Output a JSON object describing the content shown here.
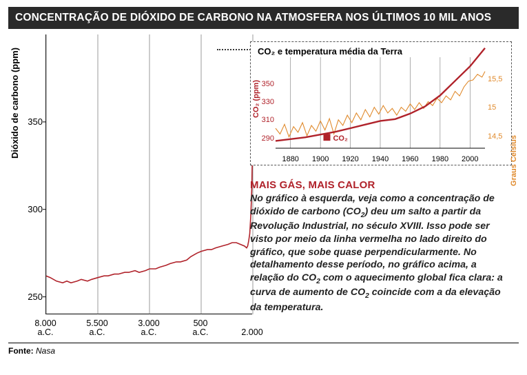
{
  "title": "CONCENTRAÇÃO DE DIÓXIDO DE CARBONO NA ATMOSFERA NOS ÚLTIMOS 10 MIL ANOS",
  "source_label": "Fonte:",
  "source_value": "Nasa",
  "main_chart": {
    "type": "line",
    "ylabel": "Dióxido de carbono (ppm)",
    "axis_color": "#000000",
    "background_color": "#ffffff",
    "line_color": "#b0222a",
    "line_width": 1.6,
    "grid_color": "#555555",
    "grid_width": 0.6,
    "ylim": [
      240,
      400
    ],
    "yticks": [
      250,
      300,
      350
    ],
    "xlim": [
      -8000,
      2000
    ],
    "xticks": [
      -8000,
      -5500,
      -3000,
      -500,
      2000
    ],
    "xtick_labels": [
      "8.000\na.C.",
      "5.500\na.C.",
      "3.000\na.C.",
      "500\na.C.",
      "2.000"
    ],
    "xgrid_at": [
      -8000,
      -5500,
      -3000,
      -500,
      2000
    ],
    "data": {
      "x": [
        -8000,
        -7800,
        -7500,
        -7200,
        -7000,
        -6800,
        -6500,
        -6300,
        -6000,
        -5800,
        -5500,
        -5200,
        -5000,
        -4700,
        -4500,
        -4200,
        -4000,
        -3700,
        -3500,
        -3200,
        -3000,
        -2700,
        -2500,
        -2200,
        -2000,
        -1700,
        -1500,
        -1200,
        -1000,
        -700,
        -500,
        -200,
        0,
        200,
        500,
        800,
        1000,
        1200,
        1400,
        1600,
        1700,
        1750,
        1800,
        1850,
        1900,
        1930,
        1950,
        1970,
        1985,
        1995,
        2005,
        2010
      ],
      "y": [
        262,
        261,
        259,
        258,
        259,
        258,
        259,
        260,
        259,
        260,
        261,
        262,
        262,
        263,
        263,
        264,
        264,
        265,
        264,
        265,
        266,
        266,
        267,
        268,
        269,
        270,
        270,
        271,
        273,
        275,
        276,
        277,
        277,
        278,
        279,
        280,
        281,
        281,
        280,
        279,
        278,
        279,
        282,
        286,
        296,
        305,
        312,
        326,
        345,
        360,
        380,
        392
      ]
    }
  },
  "inset_chart": {
    "type": "dual-axis-line",
    "title": "CO₂ e temperatura média da Terra",
    "border_style": "dashed",
    "border_color": "#555555",
    "background_color": "#ffffff",
    "xlim": [
      1870,
      2010
    ],
    "xticks": [
      1880,
      1900,
      1920,
      1940,
      1960,
      1980,
      2000
    ],
    "grid_color": "#777777",
    "grid_width": 0.6,
    "left_axis": {
      "label": "CO₂ (ppm)",
      "color": "#b0222a",
      "ylim": [
        280,
        380
      ],
      "yticks": [
        290,
        310,
        330,
        350
      ],
      "line_width": 2.4,
      "data": {
        "x": [
          1870,
          1880,
          1890,
          1900,
          1910,
          1920,
          1930,
          1940,
          1950,
          1960,
          1970,
          1980,
          1990,
          2000,
          2010
        ],
        "y": [
          288,
          290,
          292,
          295,
          298,
          302,
          306,
          310,
          312,
          318,
          326,
          338,
          354,
          370,
          390
        ]
      },
      "legend": "CO₂"
    },
    "right_axis": {
      "label": "Graus Celsius",
      "color": "#e08a2c",
      "ylim": [
        14.3,
        15.9
      ],
      "yticks": [
        14.5,
        15,
        15.5
      ],
      "line_width": 1.1,
      "data": {
        "x": [
          1870,
          1873,
          1876,
          1879,
          1882,
          1885,
          1888,
          1891,
          1894,
          1897,
          1900,
          1903,
          1906,
          1909,
          1912,
          1915,
          1918,
          1921,
          1924,
          1927,
          1930,
          1933,
          1936,
          1939,
          1942,
          1945,
          1948,
          1951,
          1954,
          1957,
          1960,
          1963,
          1966,
          1969,
          1972,
          1975,
          1978,
          1981,
          1984,
          1987,
          1990,
          1993,
          1996,
          1999,
          2002,
          2005,
          2008,
          2010
        ],
        "y": [
          14.65,
          14.55,
          14.72,
          14.5,
          14.68,
          14.58,
          14.75,
          14.52,
          14.7,
          14.6,
          14.78,
          14.62,
          14.82,
          14.55,
          14.8,
          14.7,
          14.88,
          14.75,
          14.92,
          14.8,
          14.98,
          14.85,
          15.02,
          14.9,
          15.05,
          14.92,
          15.0,
          14.88,
          15.02,
          14.95,
          15.08,
          14.98,
          15.1,
          15.0,
          15.12,
          15.05,
          15.18,
          15.1,
          15.22,
          15.15,
          15.3,
          15.22,
          15.38,
          15.48,
          15.5,
          15.6,
          15.55,
          15.65
        ]
      }
    }
  },
  "caption": {
    "heading": "MAIS GÁS, MAIS CALOR",
    "heading_color": "#b0222a",
    "body_html": "No gráfico à esquerda, veja como a concentração de dióxido de carbono (CO<sub>2</sub>) deu um salto a partir da Revolução Industrial, no século XVIII. Isso pode ser visto por meio da linha vermelha no lado direito do gráfico, que sobe quase perpendicularmente. No detalhamento desse período, no gráfico acima, a relação do CO<sub>2</sub> com o aquecimento global fica clara: a curva de aumento de CO<sub>2</sub> coincide com a da elevação da temperatura.",
    "font_style": "italic",
    "font_weight": 700,
    "font_size_pt": 11
  }
}
